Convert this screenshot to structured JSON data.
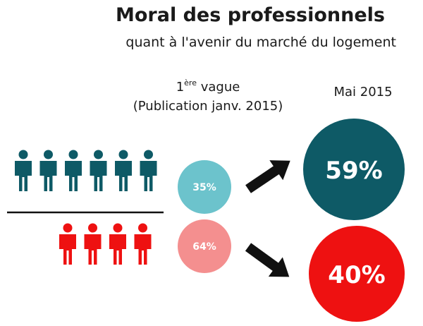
{
  "title": "Moral des professionnels",
  "subtitle": "quant à l'avenir du marché du logement",
  "left_label": {
    "prefix": "1",
    "sup": "ère",
    "word": " vague",
    "line2": "(Publication janv. 2015)"
  },
  "right_label": "Mai 2015",
  "colors": {
    "teal": "#0e5a66",
    "light_teal": "#6cc3cc",
    "red": "#ee1111",
    "light_red": "#f48f8f"
  },
  "chart_data": {
    "type": "pictogram",
    "series": [
      {
        "name": "",
        "first_wave": 35,
        "first_wave_label": "35%",
        "may_2015": 59,
        "may_2015_label": "59%",
        "icons": 6,
        "color": "teal"
      },
      {
        "name": "",
        "first_wave": 64,
        "first_wave_label": "64%",
        "may_2015": 40,
        "may_2015_label": "40%",
        "icons": 4,
        "color": "red"
      }
    ]
  }
}
